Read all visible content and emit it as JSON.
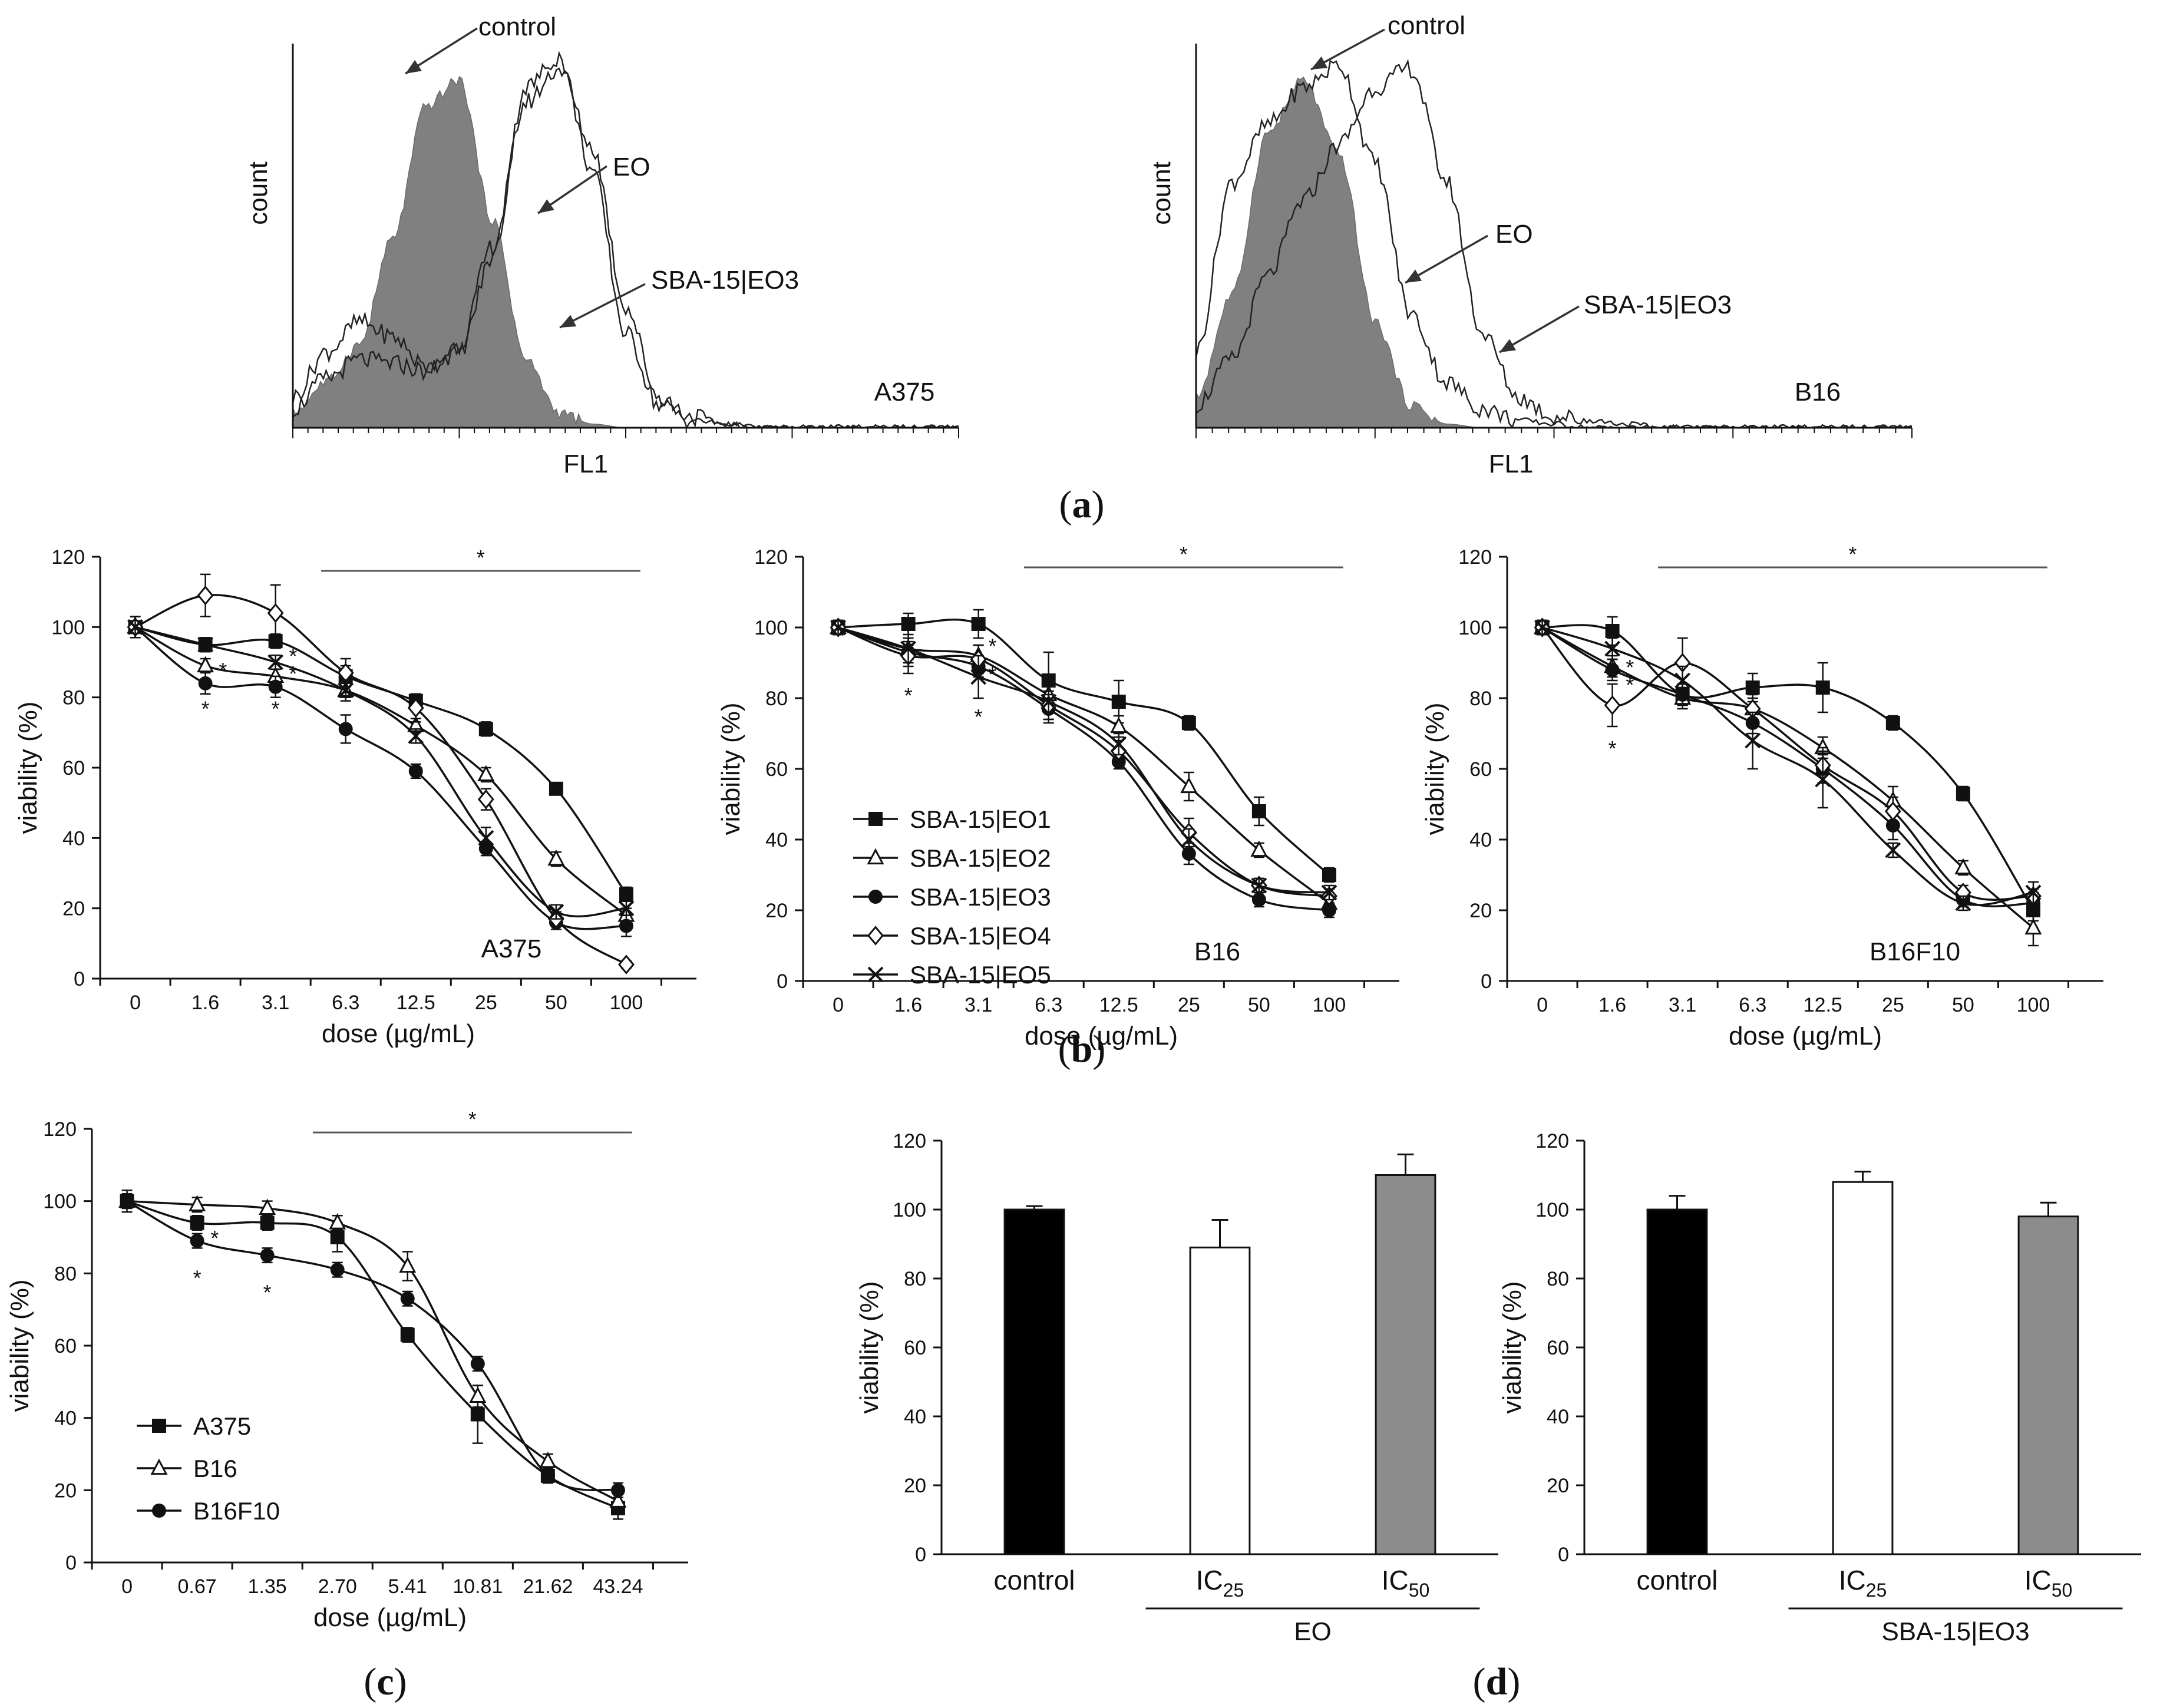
{
  "panel_labels": {
    "a": "a",
    "b": "b",
    "c": "c",
    "d": "d"
  },
  "chart_data": [
    {
      "panel": "a",
      "type": "area",
      "title": "A375",
      "xlabel": "FL1",
      "ylabel": "count",
      "x": [
        0,
        0.05,
        0.1,
        0.15,
        0.2,
        0.25,
        0.3,
        0.35,
        0.4,
        0.45,
        0.5,
        0.55,
        0.6,
        0.65,
        0.7,
        0.75,
        0.8,
        0.85,
        0.9,
        0.95,
        1.0
      ],
      "series": [
        {
          "name": "control",
          "fill": "#808080",
          "values": [
            0.04,
            0.12,
            0.22,
            0.5,
            0.85,
            0.92,
            0.55,
            0.18,
            0.04,
            0.01,
            0,
            0,
            0,
            0,
            0,
            0,
            0,
            0,
            0,
            0,
            0
          ]
        },
        {
          "name": "EO",
          "fill": "none",
          "values": [
            0.08,
            0.2,
            0.28,
            0.24,
            0.16,
            0.2,
            0.45,
            0.9,
            0.98,
            0.68,
            0.25,
            0.06,
            0.02,
            0.01,
            0,
            0,
            0,
            0,
            0,
            0,
            0
          ]
        },
        {
          "name": "SBA-15|EO3",
          "fill": "none",
          "values": [
            0.05,
            0.13,
            0.18,
            0.17,
            0.15,
            0.22,
            0.48,
            0.86,
            0.95,
            0.74,
            0.32,
            0.08,
            0.03,
            0.01,
            0,
            0,
            0,
            0,
            0,
            0,
            0
          ]
        }
      ],
      "annotations": [
        "control",
        "EO",
        "SBA-15|EO3"
      ]
    },
    {
      "panel": "a",
      "type": "area",
      "title": "B16",
      "xlabel": "FL1",
      "ylabel": "count",
      "x": [
        0,
        0.05,
        0.1,
        0.15,
        0.2,
        0.25,
        0.3,
        0.35,
        0.4,
        0.45,
        0.5,
        0.55,
        0.6,
        0.65,
        0.7,
        0.75,
        0.8,
        0.85,
        0.9,
        0.95,
        1.0
      ],
      "series": [
        {
          "name": "control",
          "fill": "#808080",
          "values": [
            0.08,
            0.35,
            0.78,
            0.92,
            0.72,
            0.28,
            0.06,
            0.01,
            0,
            0,
            0,
            0,
            0,
            0,
            0,
            0,
            0,
            0,
            0,
            0,
            0
          ]
        },
        {
          "name": "EO",
          "fill": "none",
          "values": [
            0.2,
            0.65,
            0.8,
            0.9,
            0.96,
            0.7,
            0.3,
            0.12,
            0.05,
            0.02,
            0.01,
            0,
            0,
            0,
            0,
            0,
            0,
            0,
            0,
            0,
            0
          ]
        },
        {
          "name": "SBA-15|EO3",
          "fill": "none",
          "values": [
            0.06,
            0.18,
            0.4,
            0.6,
            0.75,
            0.9,
            0.95,
            0.65,
            0.25,
            0.08,
            0.03,
            0.02,
            0.01,
            0,
            0,
            0,
            0,
            0,
            0,
            0,
            0
          ]
        }
      ],
      "annotations": [
        "control",
        "EO",
        "SBA-15|EO3"
      ]
    },
    {
      "panel": "b",
      "type": "line",
      "title": "A375",
      "xlabel": "dose (µg/mL)",
      "ylabel": "viability (%)",
      "categories": [
        "0",
        "1.6",
        "3.1",
        "6.3",
        "12.5",
        "25",
        "50",
        "100"
      ],
      "ylim": [
        0,
        120
      ],
      "yticks": [
        0,
        20,
        40,
        60,
        80,
        100,
        120
      ],
      "series": [
        {
          "name": "SBA-15|EO1",
          "marker": "square",
          "values": [
            100,
            95,
            96,
            86,
            79,
            71,
            54,
            24
          ],
          "err": [
            3,
            2,
            2,
            3,
            2,
            2,
            1,
            2
          ]
        },
        {
          "name": "SBA-15|EO2",
          "marker": "triangle",
          "values": [
            100,
            89,
            86,
            82,
            72,
            58,
            34,
            18
          ],
          "err": [
            3,
            2,
            2,
            2,
            2,
            2,
            2,
            2
          ]
        },
        {
          "name": "SBA-15|EO3",
          "marker": "circle",
          "values": [
            100,
            84,
            83,
            71,
            59,
            37,
            16,
            15
          ],
          "err": [
            3,
            3,
            3,
            4,
            2,
            2,
            2,
            3
          ]
        },
        {
          "name": "SBA-15|EO4",
          "marker": "diamond",
          "values": [
            100,
            109,
            104,
            87,
            77,
            51,
            17,
            4
          ],
          "err": [
            3,
            6,
            8,
            4,
            4,
            3,
            2,
            1
          ]
        },
        {
          "name": "SBA-15|EO5",
          "marker": "x",
          "values": [
            100,
            95,
            90,
            82,
            69,
            40,
            19,
            20
          ],
          "err": [
            3,
            2,
            2,
            3,
            2,
            3,
            2,
            2
          ]
        }
      ],
      "sig_markers": [
        {
          "x": "1.6",
          "y": 77,
          "text": "*"
        },
        {
          "x": "1.6",
          "y": 88,
          "text": "*",
          "dx": 0.25
        },
        {
          "x": "3.1",
          "y": 77,
          "text": "*"
        },
        {
          "x": "3.1",
          "y": 92,
          "text": "*",
          "dx": 0.25
        },
        {
          "x": "3.1",
          "y": 87,
          "text": "*",
          "dx": 0.25
        }
      ],
      "significance_bar": {
        "from": "6.3",
        "to": "100",
        "y": 116,
        "text": "*"
      }
    },
    {
      "panel": "b",
      "type": "line",
      "title": "B16",
      "xlabel": "dose (µg/mL)",
      "ylabel": "viability (%)",
      "categories": [
        "0",
        "1.6",
        "3.1",
        "6.3",
        "12.5",
        "25",
        "50",
        "100"
      ],
      "ylim": [
        0,
        120
      ],
      "yticks": [
        0,
        20,
        40,
        60,
        80,
        100,
        120
      ],
      "series": [
        {
          "name": "SBA-15|EO1",
          "marker": "square",
          "values": [
            100,
            101,
            101,
            85,
            79,
            73,
            48,
            30
          ],
          "err": [
            2,
            3,
            4,
            8,
            6,
            2,
            4,
            2
          ]
        },
        {
          "name": "SBA-15|EO2",
          "marker": "triangle",
          "values": [
            100,
            94,
            92,
            81,
            72,
            55,
            37,
            22
          ],
          "err": [
            2,
            3,
            3,
            4,
            3,
            4,
            2,
            2
          ]
        },
        {
          "name": "SBA-15|EO3",
          "marker": "circle",
          "values": [
            100,
            93,
            89,
            77,
            62,
            36,
            23,
            20
          ],
          "err": [
            2,
            3,
            3,
            4,
            2,
            3,
            2,
            2
          ]
        },
        {
          "name": "SBA-15|EO4",
          "marker": "diamond",
          "values": [
            100,
            92,
            91,
            78,
            65,
            42,
            27,
            24
          ],
          "err": [
            2,
            3,
            4,
            4,
            3,
            4,
            2,
            2
          ]
        },
        {
          "name": "SBA-15|EO5",
          "marker": "x",
          "values": [
            100,
            94,
            86,
            79,
            67,
            40,
            27,
            25
          ],
          "err": [
            2,
            7,
            6,
            5,
            3,
            3,
            2,
            2
          ]
        }
      ],
      "sig_markers": [
        {
          "x": "1.6",
          "y": 81,
          "text": "*"
        },
        {
          "x": "3.1",
          "y": 75,
          "text": "*"
        },
        {
          "x": "3.1",
          "y": 95,
          "text": "*",
          "dx": 0.2
        },
        {
          "x": "3.1",
          "y": 87,
          "text": "*",
          "dx": 0.2
        }
      ],
      "significance_bar": {
        "from": "6.3",
        "to": "100",
        "y": 117,
        "text": "*"
      },
      "legend": {
        "position": "lower-left",
        "entries": [
          "SBA-15|EO1",
          "SBA-15|EO2",
          "SBA-15|EO3",
          "SBA-15|EO4",
          "SBA-15|EO5"
        ]
      }
    },
    {
      "panel": "b",
      "type": "line",
      "title": "B16F10",
      "xlabel": "dose (µg/mL)",
      "ylabel": "viability (%)",
      "categories": [
        "0",
        "1.6",
        "3.1",
        "6.3",
        "12.5",
        "25",
        "50",
        "100"
      ],
      "ylim": [
        0,
        120
      ],
      "yticks": [
        0,
        20,
        40,
        60,
        80,
        100,
        120
      ],
      "series": [
        {
          "name": "SBA-15|EO1",
          "marker": "square",
          "values": [
            100,
            99,
            81,
            83,
            83,
            73,
            53,
            20
          ],
          "err": [
            2,
            4,
            3,
            4,
            7,
            2,
            2,
            3
          ]
        },
        {
          "name": "SBA-15|EO2",
          "marker": "triangle",
          "values": [
            100,
            89,
            80,
            77,
            66,
            51,
            32,
            15
          ],
          "err": [
            2,
            3,
            3,
            3,
            3,
            4,
            2,
            5
          ]
        },
        {
          "name": "SBA-15|EO3",
          "marker": "circle",
          "values": [
            100,
            88,
            81,
            73,
            60,
            44,
            23,
            22
          ],
          "err": [
            2,
            3,
            3,
            3,
            4,
            4,
            2,
            3
          ]
        },
        {
          "name": "SBA-15|EO4",
          "marker": "diamond",
          "values": [
            100,
            78,
            90,
            77,
            61,
            48,
            25,
            24
          ],
          "err": [
            2,
            6,
            7,
            4,
            5,
            4,
            2,
            2
          ]
        },
        {
          "name": "SBA-15|EO5",
          "marker": "x",
          "values": [
            100,
            94,
            85,
            68,
            57,
            37,
            22,
            25
          ],
          "err": [
            2,
            3,
            4,
            8,
            8,
            2,
            2,
            3
          ]
        }
      ],
      "sig_markers": [
        {
          "x": "1.6",
          "y": 66,
          "text": "*"
        },
        {
          "x": "1.6",
          "y": 84,
          "text": "*",
          "dx": 0.25
        },
        {
          "x": "1.6",
          "y": 89,
          "text": "*",
          "dx": 0.25
        }
      ],
      "significance_bar": {
        "from": "3.1",
        "to": "100",
        "y": 117,
        "text": "*"
      }
    },
    {
      "panel": "c",
      "type": "line",
      "title": "",
      "xlabel": "dose (µg/mL)",
      "ylabel": "viability (%)",
      "categories": [
        "0",
        "0.67",
        "1.35",
        "2.70",
        "5.41",
        "10.81",
        "21.62",
        "43.24"
      ],
      "ylim": [
        0,
        120
      ],
      "yticks": [
        0,
        20,
        40,
        60,
        80,
        100,
        120
      ],
      "series": [
        {
          "name": "A375",
          "marker": "square",
          "values": [
            100,
            94,
            94,
            90,
            63,
            41,
            24,
            15
          ],
          "err": [
            3,
            2,
            2,
            4,
            2,
            8,
            2,
            3
          ]
        },
        {
          "name": "B16",
          "marker": "triangle",
          "values": [
            100,
            99,
            98,
            94,
            82,
            46,
            28,
            17
          ],
          "err": [
            2,
            2,
            2,
            2,
            4,
            3,
            2,
            3
          ]
        },
        {
          "name": "B16F10",
          "marker": "circle",
          "values": [
            100,
            89,
            85,
            81,
            73,
            55,
            24,
            20
          ],
          "err": [
            2,
            2,
            2,
            2,
            2,
            2,
            2,
            2
          ]
        }
      ],
      "sig_markers": [
        {
          "x": "0.67",
          "y": 79,
          "text": "*"
        },
        {
          "x": "0.67",
          "y": 90,
          "text": "*",
          "dx": 0.25
        },
        {
          "x": "1.35",
          "y": 75,
          "text": "*"
        }
      ],
      "significance_bar": {
        "from": "2.70",
        "to": "43.24",
        "y": 119,
        "text": "*"
      },
      "legend": {
        "position": "lower-left",
        "entries": [
          "A375",
          "B16",
          "B16F10"
        ]
      }
    },
    {
      "panel": "d",
      "type": "bar",
      "title": "",
      "xlabel": "",
      "ylabel": "viability (%)",
      "categories": [
        "control",
        "IC25",
        "IC50"
      ],
      "category_main": [
        "control",
        "IC",
        "IC"
      ],
      "category_sub": [
        "",
        "25",
        "50"
      ],
      "group_label": "EO",
      "values": [
        100,
        89,
        110
      ],
      "err": [
        1,
        8,
        6
      ],
      "colors": [
        "#000000",
        "#ffffff",
        "#8c8c8c"
      ],
      "ylim": [
        0,
        120
      ],
      "yticks": [
        0,
        20,
        40,
        60,
        80,
        100,
        120
      ]
    },
    {
      "panel": "d",
      "type": "bar",
      "title": "",
      "xlabel": "",
      "ylabel": "viability (%)",
      "categories": [
        "control",
        "IC25",
        "IC50"
      ],
      "category_main": [
        "control",
        "IC",
        "IC"
      ],
      "category_sub": [
        "",
        "25",
        "50"
      ],
      "group_label": "SBA-15|EO3",
      "values": [
        100,
        108,
        98
      ],
      "err": [
        4,
        3,
        4
      ],
      "colors": [
        "#000000",
        "#ffffff",
        "#8c8c8c"
      ],
      "ylim": [
        0,
        120
      ],
      "yticks": [
        0,
        20,
        40,
        60,
        80,
        100,
        120
      ]
    }
  ]
}
